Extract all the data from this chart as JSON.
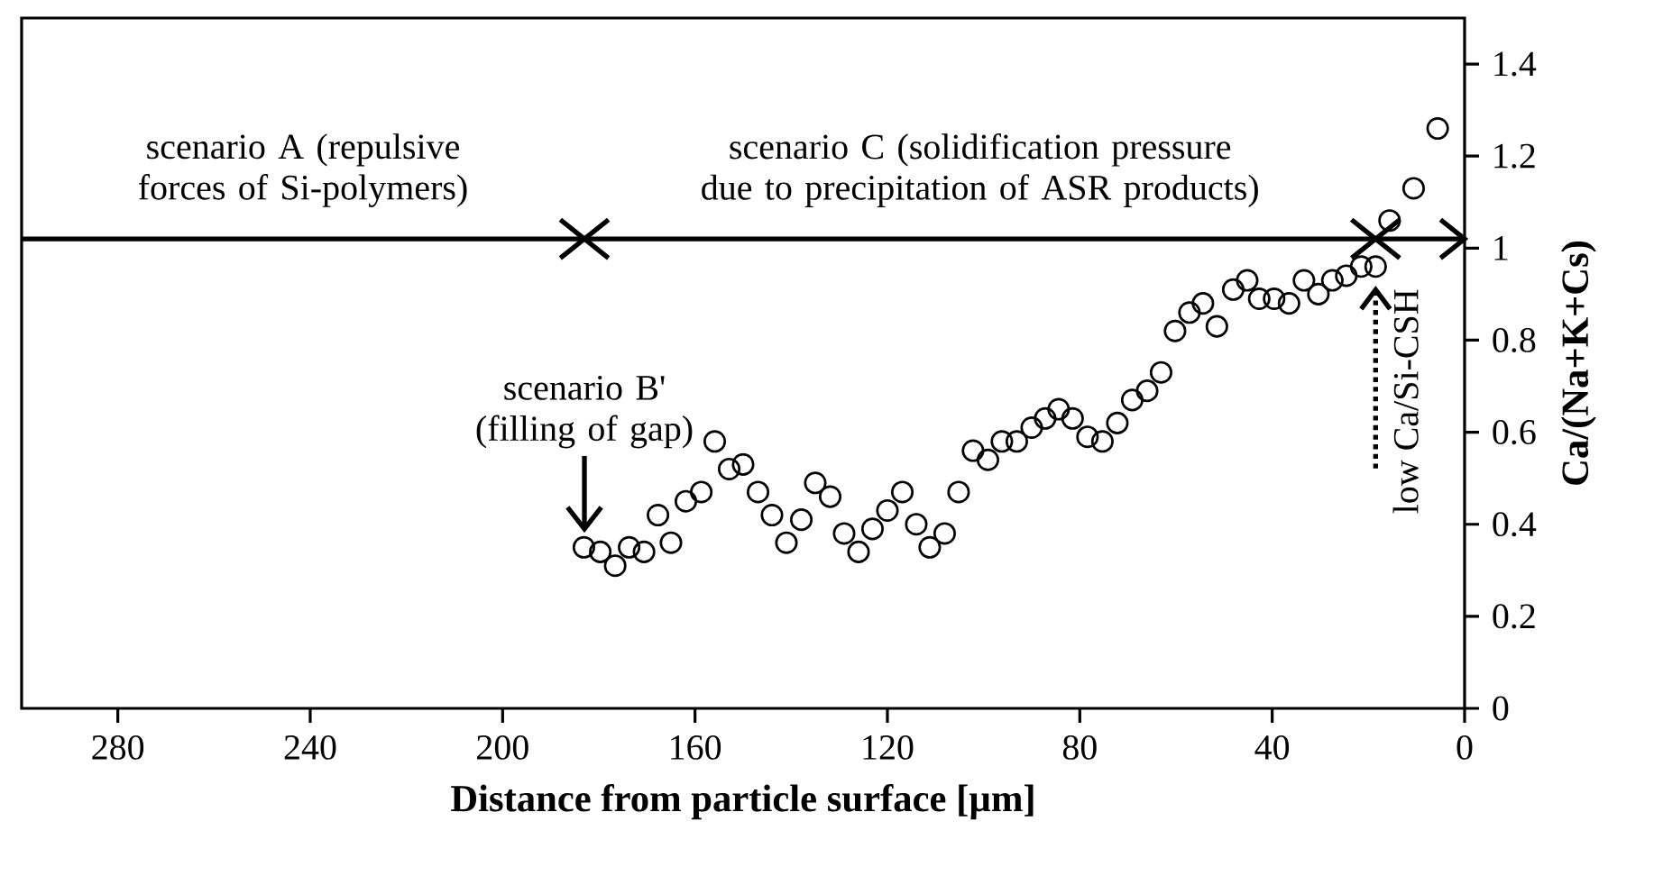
{
  "chart_data": {
    "type": "scatter",
    "xlabel": "Distance from particle surface [µm]",
    "ylabel": "Ca/(Na+K+Cs)",
    "xlim": [
      300,
      0
    ],
    "xticks": [
      280,
      240,
      200,
      160,
      120,
      80,
      40,
      0
    ],
    "ylim": [
      0,
      1.5
    ],
    "yticks": [
      0,
      0.2,
      0.4,
      0.6,
      0.8,
      1,
      1.2,
      1.4
    ],
    "marker": "circle",
    "color": "#000000",
    "x": [
      183.1,
      179.7,
      176.6,
      173.7,
      170.6,
      167.7,
      165,
      161.9,
      158.7,
      155.9,
      152.9,
      150,
      146.9,
      144,
      141,
      137.9,
      135,
      131.9,
      129,
      126,
      123.1,
      120,
      116.9,
      114,
      111.2,
      108.1,
      105.2,
      102.2,
      99.1,
      96.2,
      93.1,
      90,
      87.2,
      84.4,
      81.5,
      78.4,
      75.3,
      72.2,
      69.1,
      66,
      63.1,
      60.2,
      57.2,
      54.4,
      51.5,
      48.1,
      45.2,
      42.7,
      39.6,
      36.5,
      33.4,
      30.4,
      27.5,
      24.6,
      21.5,
      18.5,
      15.6,
      10.6,
      5.6
    ],
    "values": [
      0.35,
      0.34,
      0.31,
      0.35,
      0.34,
      0.42,
      0.36,
      0.45,
      0.47,
      0.58,
      0.52,
      0.53,
      0.47,
      0.42,
      0.36,
      0.41,
      0.49,
      0.46,
      0.38,
      0.34,
      0.39,
      0.43,
      0.47,
      0.4,
      0.35,
      0.38,
      0.47,
      0.56,
      0.54,
      0.58,
      0.58,
      0.61,
      0.63,
      0.65,
      0.63,
      0.59,
      0.58,
      0.62,
      0.67,
      0.69,
      0.73,
      0.82,
      0.86,
      0.88,
      0.83,
      0.91,
      0.93,
      0.89,
      0.89,
      0.88,
      0.93,
      0.9,
      0.93,
      0.94,
      0.96,
      0.96,
      1.06,
      1.13,
      1.26
    ],
    "ref_lines": [
      {
        "axis": "y",
        "value": 1.02
      }
    ],
    "annotations": [
      "scenario A (repulsive forces of Si-polymers)",
      "scenario C (solidification pressure due to precipitation of ASR products)",
      {
        "text": "scenario B' (filling of gap)",
        "x": 183,
        "y": 0.35
      },
      {
        "text": "low Ca/Si-CSH",
        "x": 18.5,
        "y": 0.96
      }
    ]
  }
}
